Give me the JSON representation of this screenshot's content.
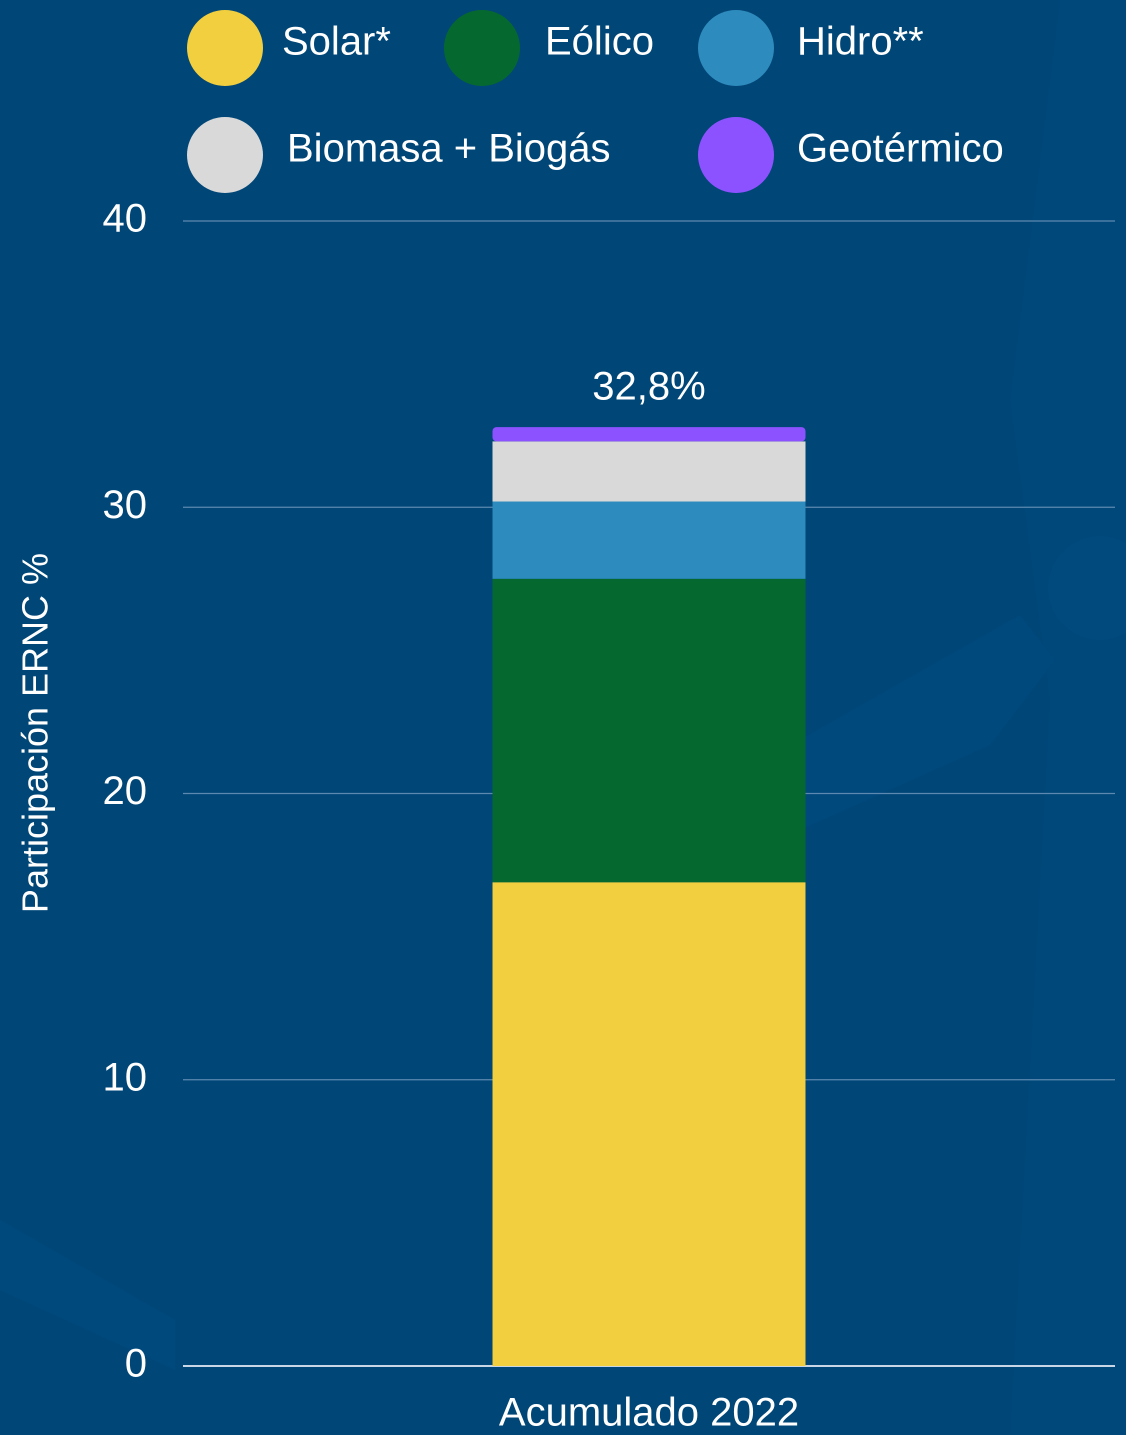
{
  "chart_data": {
    "type": "stacked_bar",
    "categories": [
      "Acumulado 2022"
    ],
    "series": [
      {
        "name": "Solar*",
        "color": "#f2cf3e",
        "values": [
          16.9
        ]
      },
      {
        "name": "Eólico",
        "color": "#05692f",
        "values": [
          10.6
        ]
      },
      {
        "name": "Hidro**",
        "color": "#2e8bbd",
        "values": [
          2.7
        ]
      },
      {
        "name": "Biomasa + Biogás",
        "color": "#d9d9d9",
        "values": [
          2.1
        ]
      },
      {
        "name": "Geotérmico",
        "color": "#8c52ff",
        "values": [
          0.5
        ]
      }
    ],
    "totals": [
      32.8
    ],
    "total_labels": [
      "32,8%"
    ],
    "y_label": "Participación ERNC %",
    "ylim": [
      0,
      40
    ],
    "yticks": [
      0,
      10,
      20,
      30,
      40
    ],
    "grid": true
  }
}
